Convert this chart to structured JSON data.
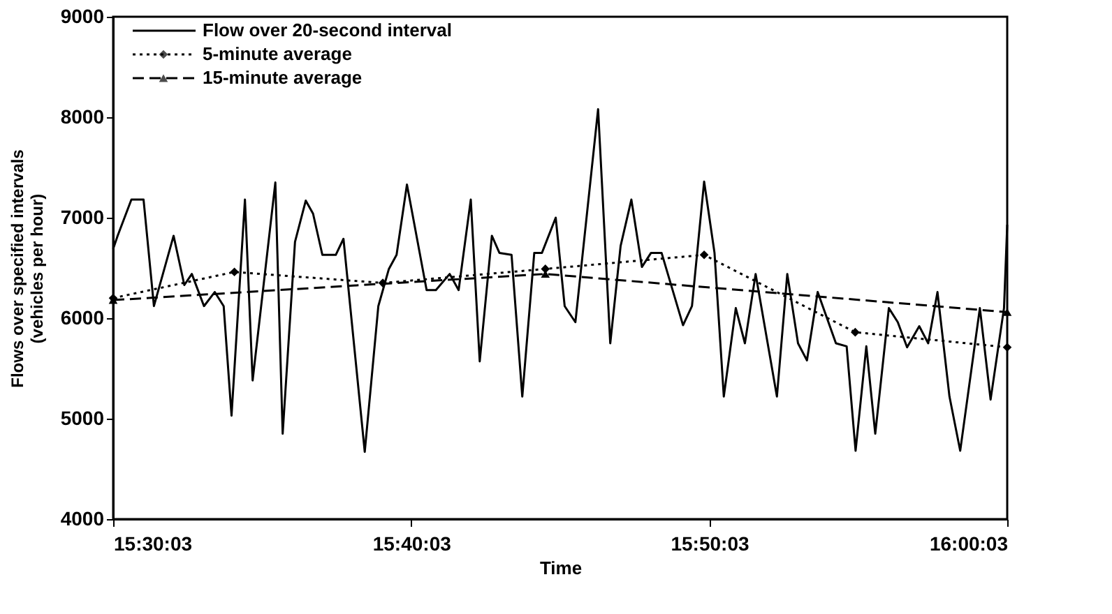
{
  "chart_data": {
    "type": "line",
    "xlabel": "Time",
    "ylabel": "Flows over specified intervals\n(vehicles per hour)",
    "xlim": [
      15.5008,
      16.0008
    ],
    "xticks": [
      {
        "value": 15.5008,
        "label": "15:30:03"
      },
      {
        "value": 15.6675,
        "label": "15:40:03"
      },
      {
        "value": 15.8342,
        "label": "15:50:03"
      },
      {
        "value": 16.0008,
        "label": "16:00:03"
      }
    ],
    "ylim": [
      4000,
      9000
    ],
    "yticks": [
      4000,
      5000,
      6000,
      7000,
      8000,
      9000
    ],
    "grid": false,
    "legend": "top left",
    "series": [
      {
        "name": "Flow over 20-second interval",
        "color": "#000000",
        "line_style": "solid",
        "marker": "none",
        "x": [
          15.5008,
          15.5033,
          15.511,
          15.5178,
          15.5236,
          15.5346,
          15.5406,
          15.5448,
          15.5516,
          15.5576,
          15.5626,
          15.567,
          15.5745,
          15.5788,
          15.5915,
          15.5956,
          15.6025,
          15.6085,
          15.6126,
          15.6178,
          15.6253,
          15.6296,
          15.6415,
          15.6491,
          15.655,
          15.6593,
          15.6651,
          15.6761,
          15.6813,
          15.689,
          15.694,
          15.7008,
          15.7058,
          15.7126,
          15.7168,
          15.7236,
          15.7296,
          15.7363,
          15.7406,
          15.7483,
          15.7533,
          15.7593,
          15.772,
          15.7788,
          15.7846,
          15.7906,
          15.7965,
          15.8016,
          15.8075,
          15.8195,
          15.8245,
          15.8313,
          15.8371,
          15.8423,
          15.849,
          15.8541,
          15.8601,
          15.872,
          15.8778,
          15.8838,
          15.8888,
          15.8948,
          15.905,
          15.911,
          15.916,
          15.922,
          15.927,
          15.9346,
          15.9396,
          15.9448,
          15.9516,
          15.9566,
          15.9618,
          15.9685,
          15.9745,
          15.9855,
          15.9915,
          15.999,
          16.0008
        ],
        "values": [
          6690,
          6820,
          7180,
          7180,
          6120,
          6820,
          6330,
          6440,
          6120,
          6260,
          6120,
          5030,
          7180,
          5380,
          7350,
          4850,
          6760,
          7170,
          7040,
          6630,
          6630,
          6790,
          4670,
          6120,
          6490,
          6630,
          7330,
          6280,
          6280,
          6440,
          6280,
          7180,
          5570,
          6820,
          6650,
          6630,
          5220,
          6650,
          6650,
          7000,
          6120,
          5960,
          8080,
          5750,
          6720,
          7180,
          6510,
          6650,
          6650,
          5930,
          6120,
          7360,
          6650,
          5220,
          6100,
          5750,
          6440,
          5220,
          6440,
          5750,
          5580,
          6260,
          5750,
          5720,
          4680,
          5720,
          4850,
          6100,
          5960,
          5710,
          5920,
          5750,
          6260,
          5220,
          4680,
          6100,
          5190,
          6100,
          6930
        ]
      },
      {
        "name": "5-minute average",
        "color": "#000000",
        "line_style": "dotted",
        "marker": "diamond",
        "x": [
          15.5008,
          15.5686,
          15.6516,
          15.7425,
          15.8313,
          15.9158,
          16.0008
        ],
        "values": [
          6200,
          6460,
          6350,
          6490,
          6630,
          5860,
          5710
        ]
      },
      {
        "name": "15-minute average",
        "color": "#000000",
        "line_style": "dashed",
        "marker": "triangle",
        "x": [
          15.5008,
          15.7425,
          16.0008
        ],
        "values": [
          6180,
          6440,
          6060
        ]
      }
    ]
  }
}
